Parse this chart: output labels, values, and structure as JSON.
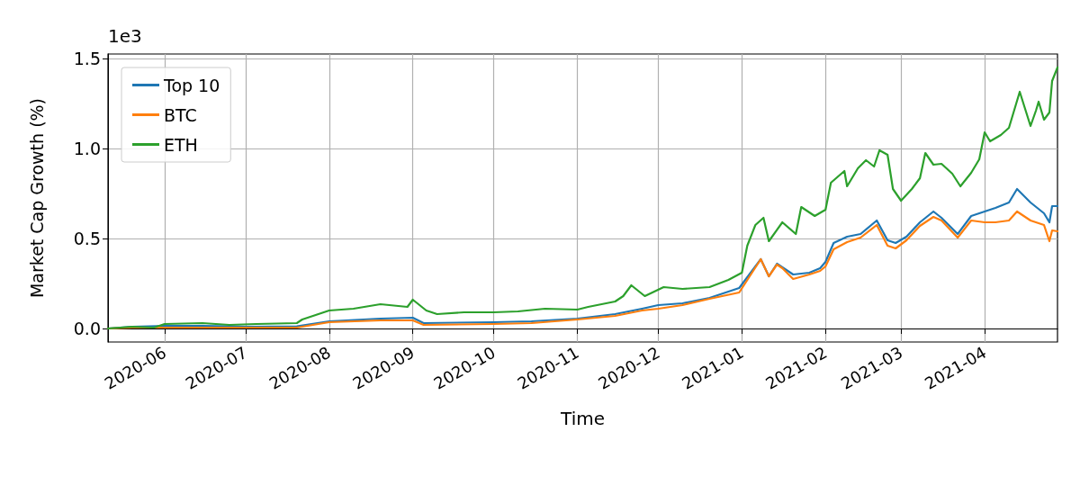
{
  "chart_data": {
    "type": "line",
    "xlabel": "Time",
    "ylabel": "Market Cap Growth (%)",
    "annotations": [
      "1e3"
    ],
    "xlim": [
      "2020-05-11",
      "2021-04-28"
    ],
    "ylim": [
      -0.075,
      1.525
    ],
    "xticks": [
      "2020-06",
      "2020-07",
      "2020-08",
      "2020-09",
      "2020-10",
      "2020-11",
      "2020-12",
      "2021-01",
      "2021-02",
      "2021-03",
      "2021-04"
    ],
    "yticks": [
      {
        "value": 0,
        "label": "0.0"
      },
      0.5,
      {
        "value": 1,
        "label": "1.0"
      },
      1.5
    ],
    "grid": true,
    "legend": "top left",
    "line_style": "solid",
    "series": [
      {
        "name": "Top 10",
        "color": "#1f77b4",
        "x": [
          "2020-05-11",
          "2020-05-20",
          "2020-06-01",
          "2020-06-15",
          "2020-07-01",
          "2020-07-20",
          "2020-08-01",
          "2020-08-20",
          "2020-09-01",
          "2020-09-05",
          "2020-10-01",
          "2020-10-15",
          "2020-11-01",
          "2020-11-15",
          "2020-11-25",
          "2020-12-01",
          "2020-12-10",
          "2020-12-20",
          "2020-12-31",
          "2021-01-08",
          "2021-01-11",
          "2021-01-14",
          "2021-01-16",
          "2021-01-20",
          "2021-01-26",
          "2021-01-30",
          "2021-02-01",
          "2021-02-04",
          "2021-02-09",
          "2021-02-14",
          "2021-02-20",
          "2021-02-24",
          "2021-02-27",
          "2021-03-03",
          "2021-03-08",
          "2021-03-13",
          "2021-03-16",
          "2021-03-22",
          "2021-03-27",
          "2021-04-01",
          "2021-04-05",
          "2021-04-10",
          "2021-04-13",
          "2021-04-18",
          "2021-04-23",
          "2021-04-25",
          "2021-04-26",
          "2021-04-28"
        ],
        "values": [
          0,
          0.01,
          0.015,
          0.015,
          0.01,
          0.012,
          0.04,
          0.055,
          0.06,
          0.03,
          0.035,
          0.04,
          0.055,
          0.08,
          0.11,
          0.13,
          0.14,
          0.17,
          0.225,
          0.385,
          0.29,
          0.36,
          0.34,
          0.3,
          0.31,
          0.335,
          0.37,
          0.475,
          0.51,
          0.525,
          0.6,
          0.49,
          0.475,
          0.51,
          0.59,
          0.65,
          0.615,
          0.525,
          0.625,
          0.65,
          0.67,
          0.7,
          0.775,
          0.7,
          0.64,
          0.59,
          0.68,
          0.68
        ]
      },
      {
        "name": "BTC",
        "color": "#ff7f0e",
        "x": [
          "2020-05-11",
          "2020-05-20",
          "2020-06-01",
          "2020-06-15",
          "2020-07-01",
          "2020-07-20",
          "2020-08-01",
          "2020-08-20",
          "2020-09-01",
          "2020-09-05",
          "2020-10-01",
          "2020-10-15",
          "2020-11-01",
          "2020-11-15",
          "2020-11-25",
          "2020-12-01",
          "2020-12-10",
          "2020-12-20",
          "2020-12-31",
          "2021-01-08",
          "2021-01-11",
          "2021-01-14",
          "2021-01-16",
          "2021-01-20",
          "2021-01-26",
          "2021-01-30",
          "2021-02-01",
          "2021-02-04",
          "2021-02-09",
          "2021-02-14",
          "2021-02-20",
          "2021-02-24",
          "2021-02-27",
          "2021-03-03",
          "2021-03-08",
          "2021-03-13",
          "2021-03-16",
          "2021-03-22",
          "2021-03-27",
          "2021-04-01",
          "2021-04-05",
          "2021-04-10",
          "2021-04-13",
          "2021-04-18",
          "2021-04-23",
          "2021-04-25",
          "2021-04-26",
          "2021-04-28"
        ],
        "values": [
          0,
          0.005,
          0.005,
          0.005,
          0.005,
          0.005,
          0.035,
          0.045,
          0.045,
          0.02,
          0.025,
          0.03,
          0.05,
          0.07,
          0.1,
          0.11,
          0.13,
          0.165,
          0.2,
          0.385,
          0.29,
          0.355,
          0.335,
          0.275,
          0.3,
          0.32,
          0.345,
          0.44,
          0.48,
          0.505,
          0.575,
          0.46,
          0.445,
          0.49,
          0.57,
          0.62,
          0.6,
          0.505,
          0.6,
          0.59,
          0.59,
          0.6,
          0.65,
          0.6,
          0.575,
          0.485,
          0.545,
          0.54
        ]
      },
      {
        "name": "ETH",
        "color": "#2ca02c",
        "x": [
          "2020-05-11",
          "2020-05-20",
          "2020-05-28",
          "2020-06-01",
          "2020-06-15",
          "2020-06-25",
          "2020-07-05",
          "2020-07-20",
          "2020-07-22",
          "2020-08-01",
          "2020-08-10",
          "2020-08-20",
          "2020-08-30",
          "2020-09-01",
          "2020-09-06",
          "2020-09-10",
          "2020-09-20",
          "2020-10-01",
          "2020-10-10",
          "2020-10-20",
          "2020-11-01",
          "2020-11-05",
          "2020-11-15",
          "2020-11-18",
          "2020-11-21",
          "2020-11-26",
          "2020-12-03",
          "2020-12-10",
          "2020-12-20",
          "2020-12-27",
          "2021-01-01",
          "2021-01-03",
          "2021-01-06",
          "2021-01-09",
          "2021-01-11",
          "2021-01-16",
          "2021-01-21",
          "2021-01-23",
          "2021-01-28",
          "2021-02-01",
          "2021-02-03",
          "2021-02-08",
          "2021-02-09",
          "2021-02-13",
          "2021-02-16",
          "2021-02-19",
          "2021-02-21",
          "2021-02-24",
          "2021-02-26",
          "2021-03-01",
          "2021-03-05",
          "2021-03-08",
          "2021-03-10",
          "2021-03-13",
          "2021-03-16",
          "2021-03-20",
          "2021-03-23",
          "2021-03-27",
          "2021-03-30",
          "2021-04-01",
          "2021-04-03",
          "2021-04-07",
          "2021-04-10",
          "2021-04-14",
          "2021-04-18",
          "2021-04-20",
          "2021-04-21",
          "2021-04-23",
          "2021-04-25",
          "2021-04-26",
          "2021-04-28"
        ],
        "values": [
          0,
          0.01,
          0.005,
          0.025,
          0.03,
          0.02,
          0.025,
          0.03,
          0.05,
          0.1,
          0.11,
          0.135,
          0.12,
          0.16,
          0.1,
          0.08,
          0.09,
          0.09,
          0.095,
          0.11,
          0.105,
          0.12,
          0.15,
          0.18,
          0.24,
          0.18,
          0.23,
          0.22,
          0.23,
          0.27,
          0.31,
          0.46,
          0.575,
          0.615,
          0.485,
          0.59,
          0.525,
          0.675,
          0.625,
          0.66,
          0.81,
          0.875,
          0.79,
          0.89,
          0.935,
          0.9,
          0.99,
          0.965,
          0.775,
          0.71,
          0.775,
          0.835,
          0.975,
          0.91,
          0.915,
          0.86,
          0.79,
          0.865,
          0.94,
          1.09,
          1.04,
          1.075,
          1.115,
          1.315,
          1.125,
          1.21,
          1.26,
          1.16,
          1.2,
          1.375,
          1.45
        ]
      }
    ]
  }
}
